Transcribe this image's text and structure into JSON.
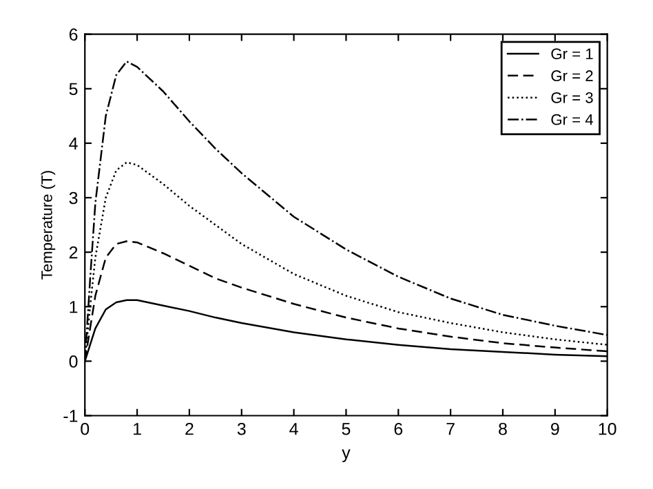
{
  "chart_data": {
    "type": "line",
    "xlabel": "y",
    "ylabel": "Temperature (T)",
    "x": [
      0,
      0.1,
      0.2,
      0.4,
      0.6,
      0.8,
      1,
      1.5,
      2,
      2.5,
      3,
      4,
      5,
      6,
      7,
      8,
      9,
      10
    ],
    "series": [
      {
        "name": "Gr = 1",
        "color": "#000000",
        "line_style": "solid",
        "values": [
          0,
          0.3,
          0.6,
          0.95,
          1.08,
          1.12,
          1.12,
          1.02,
          0.92,
          0.8,
          0.7,
          0.53,
          0.4,
          0.3,
          0.22,
          0.17,
          0.12,
          0.09
        ]
      },
      {
        "name": "Gr = 2",
        "color": "#000000",
        "line_style": "dashed",
        "values": [
          0,
          0.6,
          1.2,
          1.9,
          2.15,
          2.2,
          2.18,
          1.98,
          1.75,
          1.52,
          1.35,
          1.05,
          0.8,
          0.6,
          0.45,
          0.33,
          0.25,
          0.18
        ]
      },
      {
        "name": "Gr = 3",
        "color": "#000000",
        "line_style": "dotted",
        "values": [
          0,
          1.0,
          1.9,
          3.0,
          3.5,
          3.65,
          3.6,
          3.25,
          2.85,
          2.5,
          2.15,
          1.6,
          1.2,
          0.9,
          0.7,
          0.53,
          0.4,
          0.3
        ]
      },
      {
        "name": "Gr = 4",
        "color": "#000000",
        "line_style": "dashdot",
        "values": [
          0,
          1.5,
          2.9,
          4.5,
          5.25,
          5.5,
          5.4,
          4.95,
          4.4,
          3.9,
          3.45,
          2.65,
          2.05,
          1.55,
          1.15,
          0.85,
          0.65,
          0.48
        ]
      }
    ],
    "xlim": [
      0,
      10
    ],
    "ylim": [
      -1,
      6
    ],
    "xticks": [
      0,
      1,
      2,
      3,
      4,
      5,
      6,
      7,
      8,
      9,
      10
    ],
    "yticks": [
      -1,
      0,
      1,
      2,
      3,
      4,
      5,
      6
    ],
    "grid": false,
    "legend": "top right",
    "marker": "none"
  }
}
